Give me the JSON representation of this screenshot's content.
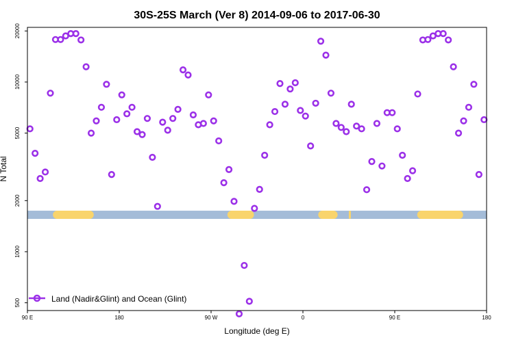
{
  "chart_data": {
    "type": "scatter",
    "title": "30S-25S March (Ver 8)   2014-09-06 to 2017-06-30",
    "xlabel": "Longitude (deg E)",
    "ylabel": "N Total",
    "y_scale": "log",
    "x_ticks": [
      {
        "pos": 90,
        "label": "90 E"
      },
      {
        "pos": 180,
        "label": "180"
      },
      {
        "pos": 270,
        "label": "90 W"
      },
      {
        "pos": 360,
        "label": "0"
      },
      {
        "pos": 450,
        "label": "90 E"
      },
      {
        "pos": 540,
        "label": "180"
      }
    ],
    "y_ticks": [
      {
        "value": 500,
        "label": "500"
      },
      {
        "value": 1000,
        "label": "1000"
      },
      {
        "value": 2000,
        "label": "2000"
      },
      {
        "value": 5000,
        "label": "5000"
      },
      {
        "value": 10000,
        "label": "10000"
      },
      {
        "value": 20000,
        "label": "20000"
      }
    ],
    "xlim": [
      90,
      540
    ],
    "ylim": [
      450,
      21000
    ],
    "band": {
      "value": 1650,
      "ocean_color": "#a4bcd8",
      "land_color": "#f9d46c",
      "land_segments": [
        [
          115,
          155
        ],
        [
          286,
          312
        ],
        [
          375,
          394
        ],
        [
          405,
          407
        ],
        [
          472,
          517
        ]
      ]
    },
    "series": [
      {
        "name": "Land (Nadir&Glint) and Ocean (Glint)",
        "color": "#9b30e8",
        "x": [
          92.5,
          97.5,
          102.5,
          107.5,
          112.5,
          117.5,
          122.5,
          127.5,
          132.5,
          137.5,
          142.5,
          147.5,
          152.5,
          157.5,
          162.5,
          167.5,
          172.5,
          177.5,
          182.5,
          187.5,
          192.5,
          197.5,
          202.5,
          207.5,
          212.5,
          217.5,
          222.5,
          227.5,
          232.5,
          237.5,
          242.5,
          247.5,
          252.5,
          257.5,
          262.5,
          267.5,
          272.5,
          277.5,
          282.5,
          287.5,
          292.5,
          297.5,
          302.5,
          307.5,
          312.5,
          317.5,
          322.5,
          327.5,
          332.5,
          337.5,
          342.5,
          347.5,
          352.5,
          357.5,
          362.5,
          367.5,
          372.5,
          377.5,
          382.5,
          387.5,
          392.5,
          397.5,
          402.5,
          407.5,
          412.5,
          417.5,
          422.5,
          427.5,
          432.5,
          437.5,
          442.5,
          447.5,
          452.5,
          457.5,
          462.5,
          467.5,
          472.5,
          477.5,
          482.5,
          487.5,
          492.5,
          497.5,
          502.5,
          507.5,
          512.5,
          517.5,
          522.5,
          527.5,
          532.5,
          537.5
        ],
        "y": [
          5300,
          3800,
          2700,
          2950,
          8600,
          17800,
          17800,
          18700,
          19300,
          19300,
          17700,
          12300,
          5000,
          5900,
          7100,
          9700,
          2850,
          6000,
          8400,
          6500,
          7100,
          5100,
          4900,
          6100,
          3600,
          1850,
          5800,
          5200,
          6100,
          6900,
          11800,
          11000,
          6400,
          5600,
          5700,
          8400,
          5900,
          4500,
          2550,
          3050,
          1980,
          430,
          830,
          510,
          1800,
          2330,
          3700,
          5600,
          6700,
          9800,
          7400,
          9100,
          9900,
          6800,
          6300,
          4200,
          7500,
          17400,
          14400,
          8600,
          5700,
          5400,
          5100,
          7400,
          5500,
          5300,
          2320,
          3400,
          5700,
          3200,
          6600,
          6600,
          5300,
          3700,
          2700,
          3000,
          8500,
          17700,
          17800,
          18700,
          19300,
          19300,
          17700,
          12300,
          5000,
          5900,
          7100,
          9700,
          2850,
          6000
        ]
      }
    ],
    "legend": {
      "position": "bottom-left",
      "label": "Land (Nadir&Glint) and Ocean (Glint)"
    }
  }
}
